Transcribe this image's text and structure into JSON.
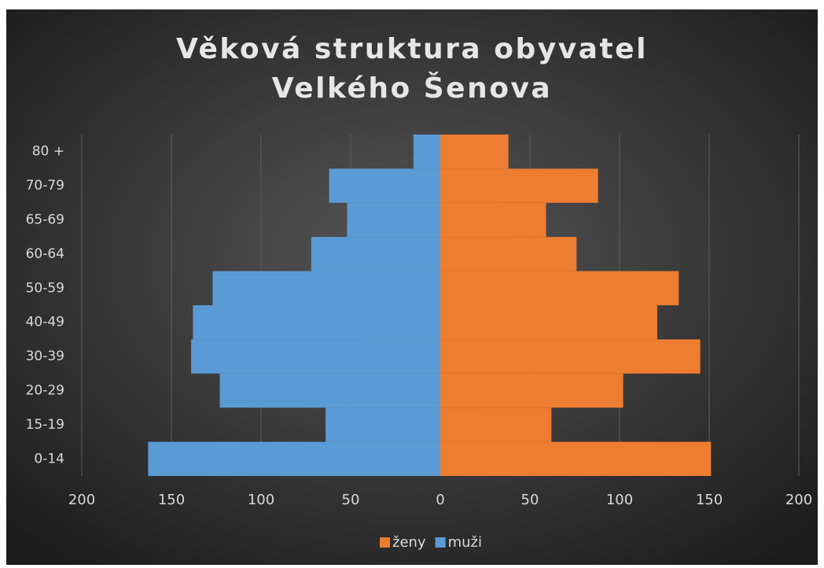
{
  "chart_data": {
    "type": "bar",
    "orientation": "horizontal",
    "stacked": true,
    "title": "Věková struktura obyvatel  Velkého Šenova",
    "categories": [
      "0-14",
      "15-19",
      "20-29",
      "30-39",
      "40-49",
      "50-59",
      "60-64",
      "65-69",
      "70-79",
      "80 +"
    ],
    "series": [
      {
        "name": "ženy",
        "color": "#ed7d31",
        "values": [
          151,
          62,
          102,
          145,
          121,
          133,
          76,
          59,
          88,
          38
        ]
      },
      {
        "name": "muži",
        "color": "#5b9bd5",
        "values": [
          -163,
          -64,
          -123,
          -139,
          -138,
          -127,
          -72,
          -52,
          -62,
          -15
        ]
      }
    ],
    "xlim": [
      -200,
      200
    ],
    "xticks": [
      {
        "value": -200,
        "label": "200"
      },
      {
        "value": -150,
        "label": "150"
      },
      {
        "value": -100,
        "label": "100"
      },
      {
        "value": -50,
        "label": "50"
      },
      0,
      50,
      100,
      150,
      200
    ],
    "grid": true,
    "legend": "bottom"
  }
}
